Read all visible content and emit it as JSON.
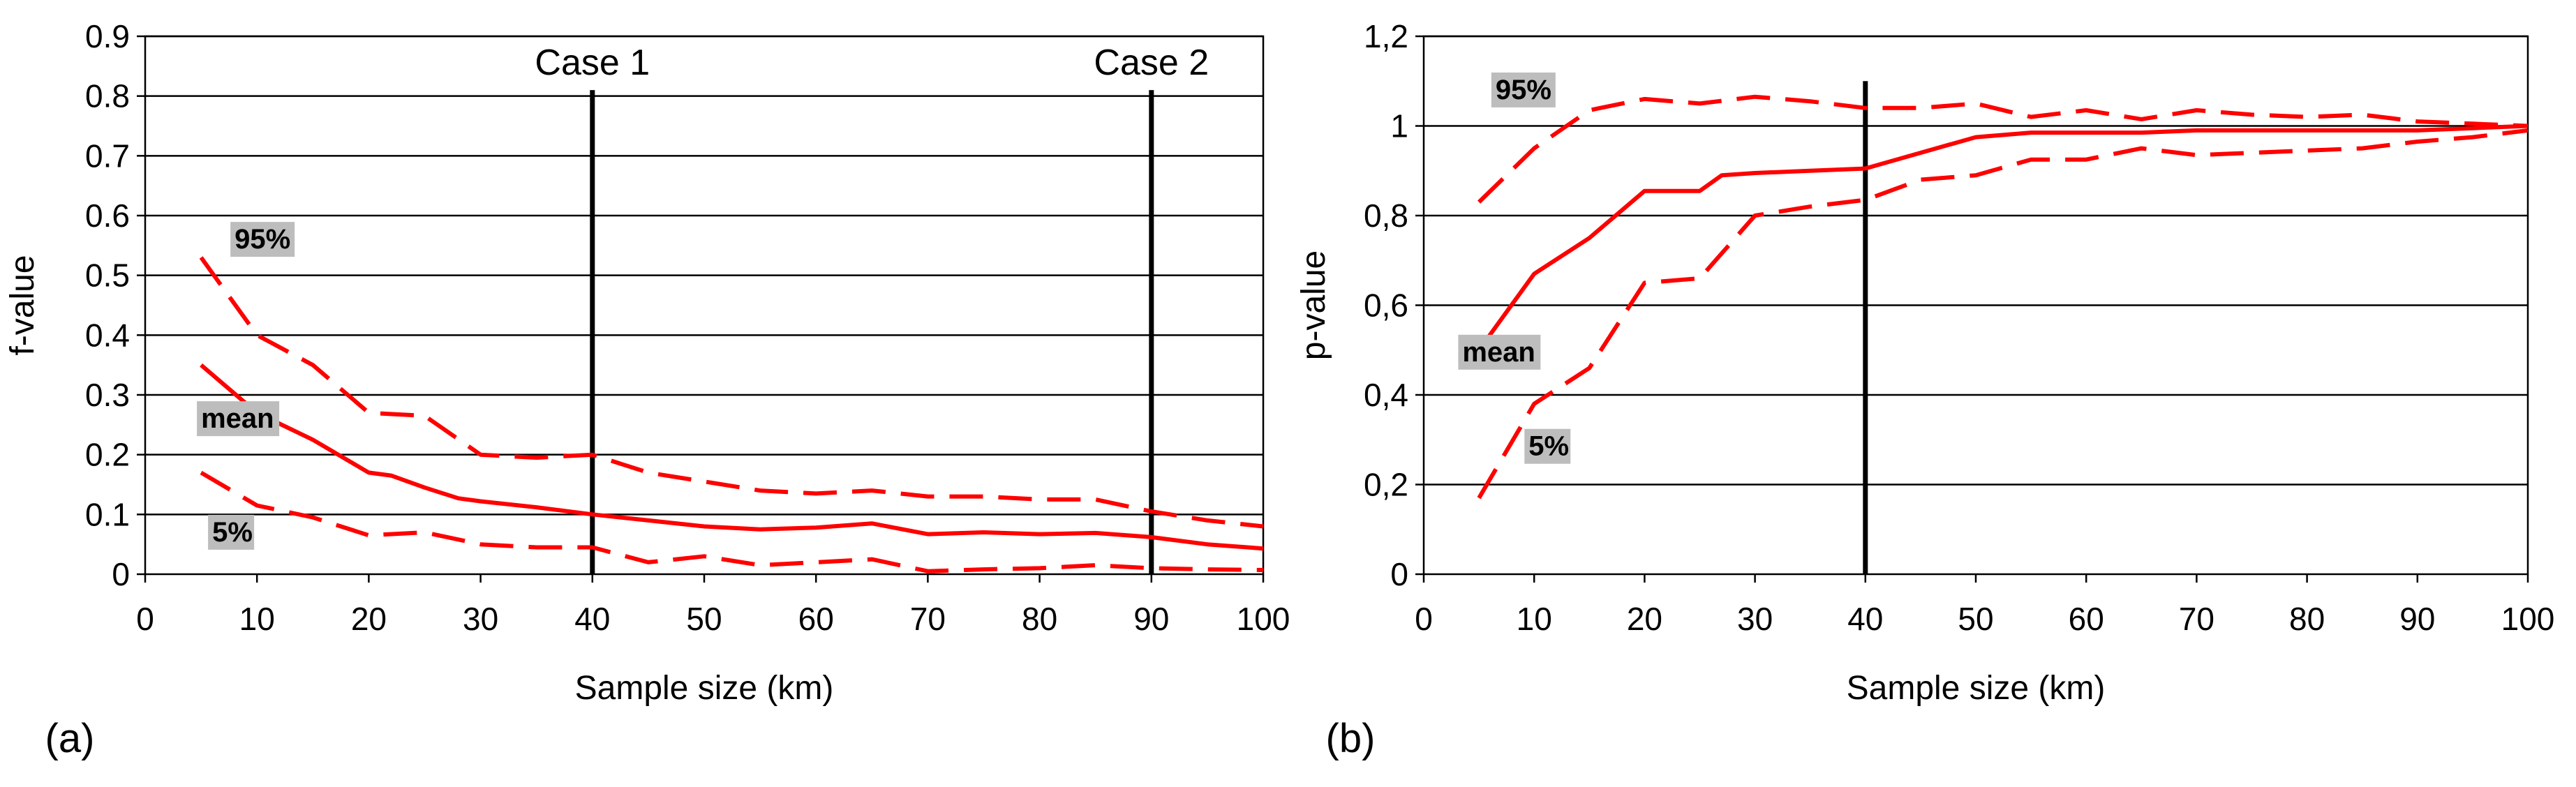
{
  "chart_data": [
    {
      "type": "line",
      "panel_label": "(a)",
      "xlabel": "Sample size (km)",
      "ylabel": "f-value",
      "xlim": [
        0,
        100
      ],
      "ylim": [
        0,
        0.9
      ],
      "x_ticks": [
        "0",
        "10",
        "20",
        "30",
        "40",
        "50",
        "60",
        "70",
        "80",
        "90",
        "100"
      ],
      "y_ticks": [
        "0",
        "0.1",
        "0.2",
        "0.3",
        "0.4",
        "0.5",
        "0.6",
        "0.7",
        "0.8",
        "0.9"
      ],
      "grid": true,
      "series_color": "#ff0000",
      "series": [
        {
          "name": "95%",
          "style": "dashed",
          "x": [
            5,
            10,
            15,
            20,
            25,
            30,
            35,
            40,
            45,
            50,
            55,
            60,
            65,
            70,
            75,
            80,
            85,
            90,
            95,
            100
          ],
          "values": [
            0.53,
            0.4,
            0.35,
            0.27,
            0.265,
            0.2,
            0.195,
            0.2,
            0.17,
            0.155,
            0.14,
            0.135,
            0.14,
            0.13,
            0.13,
            0.125,
            0.125,
            0.105,
            0.09,
            0.08
          ]
        },
        {
          "name": "mean",
          "style": "solid",
          "x": [
            5,
            10,
            15,
            20,
            22,
            25,
            28,
            30,
            35,
            40,
            45,
            50,
            55,
            60,
            65,
            70,
            75,
            80,
            85,
            90,
            95,
            100
          ],
          "values": [
            0.35,
            0.27,
            0.225,
            0.17,
            0.165,
            0.145,
            0.127,
            0.122,
            0.112,
            0.1,
            0.09,
            0.08,
            0.075,
            0.078,
            0.085,
            0.067,
            0.07,
            0.067,
            0.069,
            0.062,
            0.05,
            0.043
          ]
        },
        {
          "name": "5%",
          "style": "dashed",
          "x": [
            5,
            10,
            15,
            20,
            25,
            30,
            35,
            40,
            45,
            50,
            55,
            60,
            65,
            70,
            75,
            80,
            85,
            90,
            95,
            100
          ],
          "values": [
            0.17,
            0.115,
            0.095,
            0.065,
            0.07,
            0.05,
            0.045,
            0.045,
            0.02,
            0.03,
            0.015,
            0.02,
            0.025,
            0.005,
            0.008,
            0.01,
            0.015,
            0.01,
            0.008,
            0.007
          ]
        }
      ],
      "vlines": [
        {
          "x": 40,
          "y_top": 0.81,
          "label": "Case 1"
        },
        {
          "x": 90,
          "y_top": 0.81,
          "label": "Case 2"
        }
      ],
      "annotations": [
        {
          "text": "95%",
          "x": 8,
          "y": 0.545
        },
        {
          "text": "mean",
          "x": 5,
          "y": 0.245
        },
        {
          "text": "5%",
          "x": 6,
          "y": 0.055
        }
      ]
    },
    {
      "type": "line",
      "panel_label": "(b)",
      "xlabel": "Sample size (km)",
      "ylabel": "p-value",
      "xlim": [
        0,
        100
      ],
      "ylim": [
        0,
        1.2
      ],
      "x_ticks": [
        "0",
        "10",
        "20",
        "30",
        "40",
        "50",
        "60",
        "70",
        "80",
        "90",
        "100"
      ],
      "y_ticks": [
        "0",
        "0,2",
        "0,4",
        "0,6",
        "0,8",
        "1",
        "1,2"
      ],
      "grid": true,
      "series_color": "#ff0000",
      "series": [
        {
          "name": "95%",
          "style": "dashed",
          "x": [
            5,
            10,
            15,
            20,
            25,
            30,
            35,
            40,
            45,
            50,
            55,
            60,
            65,
            70,
            75,
            80,
            85,
            90,
            95,
            100
          ],
          "values": [
            0.83,
            0.95,
            1.035,
            1.06,
            1.05,
            1.065,
            1.055,
            1.04,
            1.04,
            1.05,
            1.02,
            1.035,
            1.015,
            1.035,
            1.025,
            1.02,
            1.025,
            1.01,
            1.005,
            1.0
          ]
        },
        {
          "name": "mean",
          "style": "solid",
          "x": [
            5,
            10,
            15,
            20,
            25,
            27,
            30,
            35,
            40,
            45,
            50,
            55,
            60,
            65,
            70,
            75,
            80,
            85,
            90,
            95,
            100
          ],
          "values": [
            0.5,
            0.67,
            0.75,
            0.855,
            0.855,
            0.89,
            0.895,
            0.9,
            0.905,
            0.94,
            0.975,
            0.985,
            0.985,
            0.985,
            0.99,
            0.99,
            0.99,
            0.99,
            0.99,
            0.995,
            1.0
          ]
        },
        {
          "name": "5%",
          "style": "dashed",
          "x": [
            5,
            10,
            15,
            20,
            25,
            30,
            35,
            40,
            45,
            50,
            55,
            60,
            65,
            70,
            75,
            80,
            85,
            90,
            95,
            100
          ],
          "values": [
            0.17,
            0.38,
            0.46,
            0.65,
            0.66,
            0.8,
            0.82,
            0.835,
            0.88,
            0.89,
            0.925,
            0.925,
            0.95,
            0.935,
            0.94,
            0.945,
            0.95,
            0.965,
            0.975,
            0.99
          ]
        }
      ],
      "vlines": [
        {
          "x": 40,
          "y_top": 1.1,
          "label": ""
        }
      ],
      "annotations": [
        {
          "text": "95%",
          "x": 6.5,
          "y": 1.06
        },
        {
          "text": "mean",
          "x": 3.5,
          "y": 0.475
        },
        {
          "text": "5%",
          "x": 9.5,
          "y": 0.265
        }
      ]
    }
  ]
}
